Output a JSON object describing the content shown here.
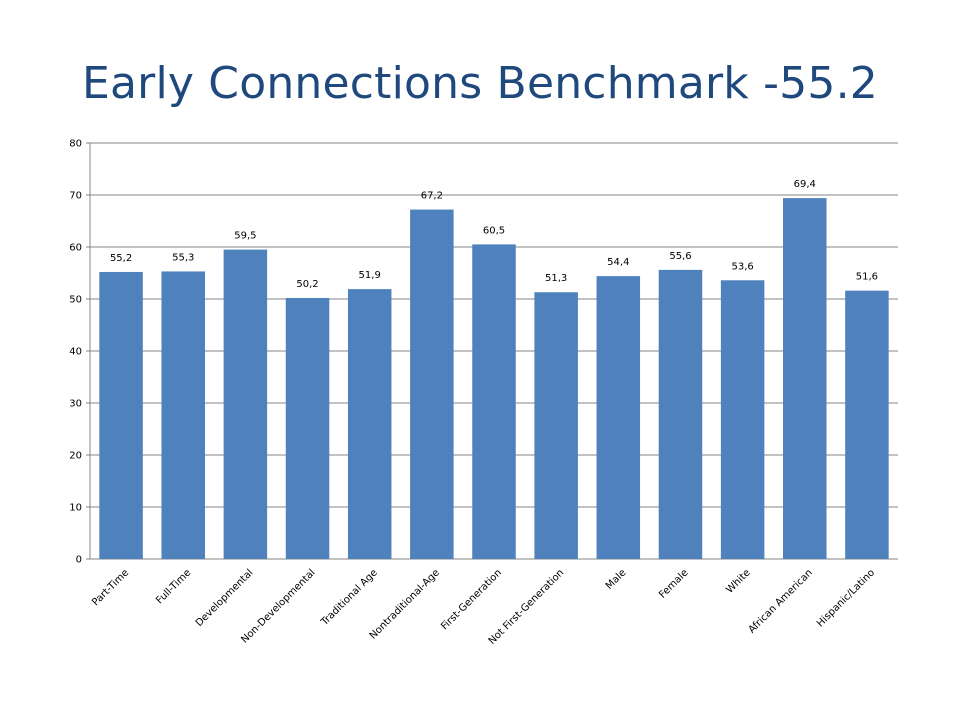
{
  "title": "Early Connections Benchmark -55.2",
  "colors": {
    "bar": "#4f81bd",
    "title": "#1f497d",
    "grid": "#868686"
  },
  "chart_data": {
    "type": "bar",
    "title": "Early Connections Benchmark -55.2",
    "categories": [
      "Part-Time",
      "Full-Time",
      "Developmental",
      "Non-Developmental",
      "Traditional Age",
      "Nontraditional-Age",
      "First-Generation",
      "Not First-Generation",
      "Male",
      "Female",
      "White",
      "African American",
      "Hispanic/Latino"
    ],
    "values": [
      55.2,
      55.3,
      59.5,
      50.2,
      51.9,
      67.2,
      60.5,
      51.3,
      54.4,
      55.6,
      53.6,
      69.4,
      51.6
    ],
    "value_labels": [
      "55,2",
      "55,3",
      "59,5",
      "50,2",
      "51,9",
      "67,2",
      "60,5",
      "51,3",
      "54,4",
      "55,6",
      "53,6",
      "69,4",
      "51,6"
    ],
    "yticks": [
      0,
      10,
      20,
      30,
      40,
      50,
      60,
      70,
      80
    ],
    "ylim": [
      0,
      80
    ],
    "grid": true,
    "legend": "none"
  }
}
